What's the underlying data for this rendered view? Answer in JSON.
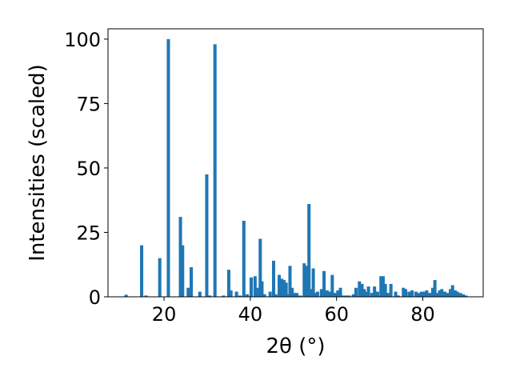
{
  "chart_data": {
    "type": "bar",
    "xlabel": "2θ (°)",
    "ylabel": "Intensities (scaled)",
    "xlim": [
      7,
      94
    ],
    "ylim": [
      0,
      104
    ],
    "xticks": [
      20,
      40,
      60,
      80
    ],
    "yticks": [
      0,
      25,
      50,
      75,
      100
    ],
    "bar_width": 0.75,
    "bar_color": "#1f77b4",
    "grid": false,
    "legend": "none",
    "x": [
      11.2,
      14.8,
      15.8,
      19.0,
      21.0,
      23.8,
      24.3,
      25.6,
      26.3,
      28.3,
      29.9,
      30.6,
      31.8,
      33.8,
      35.0,
      35.5,
      36.8,
      37.6,
      38.5,
      39.3,
      40.2,
      41.1,
      41.8,
      42.3,
      42.7,
      43.3,
      44.6,
      45.4,
      45.9,
      46.7,
      47.3,
      47.8,
      48.3,
      48.7,
      49.2,
      49.7,
      50.2,
      50.8,
      51.6,
      52.5,
      53.1,
      53.6,
      54.1,
      54.6,
      55.0,
      55.6,
      56.5,
      57.1,
      57.8,
      58.4,
      59.0,
      59.6,
      60.3,
      60.9,
      61.6,
      62.2,
      62.9,
      63.9,
      64.5,
      65.3,
      65.9,
      66.4,
      66.9,
      67.4,
      68.2,
      68.8,
      69.5,
      70.3,
      70.8,
      71.3,
      71.9,
      72.6,
      73.7,
      74.3,
      75.5,
      76.0,
      76.8,
      77.5,
      78.4,
      79.0,
      79.7,
      80.3,
      80.9,
      81.6,
      82.3,
      82.8,
      83.3,
      83.9,
      84.4,
      85.1,
      85.7,
      86.4,
      86.9,
      87.5,
      88.0,
      88.7,
      89.4,
      90.0
    ],
    "values": [
      0.8,
      20,
      0.5,
      15,
      100,
      31,
      20,
      3.5,
      11.5,
      2,
      47.5,
      0.5,
      98,
      0.5,
      10.5,
      2.5,
      2,
      0.5,
      29.5,
      1,
      7.5,
      8,
      3.5,
      22.5,
      6,
      1,
      2,
      14,
      1,
      8.5,
      7,
      6.5,
      5.5,
      1,
      12,
      3.5,
      1.5,
      1.5,
      0.5,
      13,
      12,
      36,
      3,
      11,
      1.5,
      2,
      3,
      10,
      2.5,
      2,
      8.5,
      1.5,
      2.5,
      3.5,
      0.5,
      0.5,
      0.5,
      1,
      3.5,
      6,
      5,
      3,
      2,
      4,
      1.5,
      4,
      2,
      8,
      8,
      5,
      1.5,
      5,
      2,
      0.5,
      3.5,
      3,
      2,
      2.5,
      2,
      1.5,
      2,
      2,
      2.5,
      1.5,
      3.5,
      6.5,
      1.5,
      2.5,
      3,
      2,
      1.5,
      3,
      4.5,
      2.5,
      2,
      1.5,
      1,
      0.5
    ]
  }
}
